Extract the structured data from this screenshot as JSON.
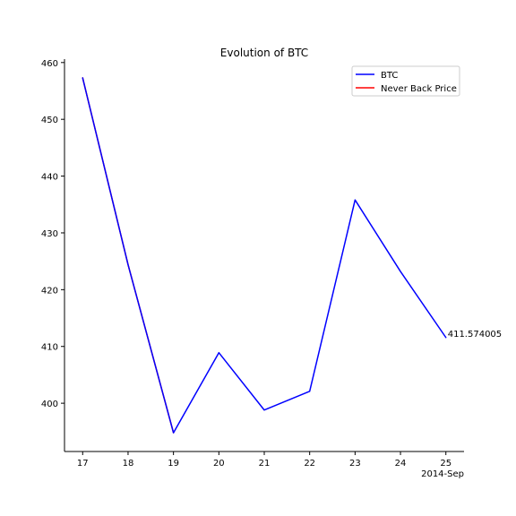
{
  "chart_data": {
    "type": "line",
    "title": "Evolution of BTC",
    "x_offset_label": "2014-Sep",
    "x": [
      17,
      18,
      19,
      20,
      21,
      22,
      23,
      24,
      25
    ],
    "x_tick_labels": [
      "17",
      "18",
      "19",
      "20",
      "21",
      "22",
      "23",
      "24",
      "25"
    ],
    "xlim": [
      16.6,
      25.4
    ],
    "ylim": [
      391.5,
      460.6
    ],
    "y_ticks": [
      400,
      410,
      420,
      430,
      440,
      450,
      460
    ],
    "y_tick_labels": [
      "400",
      "410",
      "420",
      "430",
      "440",
      "450",
      "460"
    ],
    "series": [
      {
        "name": "BTC",
        "color": "#0000ff",
        "x": [
          17,
          18,
          19,
          20,
          21,
          22,
          23,
          24,
          25
        ],
        "values": [
          457.3,
          424.4,
          394.8,
          408.9,
          398.8,
          402.1,
          435.8,
          423.2,
          411.574005
        ]
      },
      {
        "name": "Never Back Price",
        "color": "#ff0000",
        "x": [
          17,
          18,
          19
        ],
        "values": [
          457.3,
          424.4,
          394.8
        ]
      }
    ],
    "legend_order": [
      "BTC",
      "Never Back Price"
    ],
    "legend_position": "top-right",
    "annotation": "411.574005",
    "grid": false
  }
}
